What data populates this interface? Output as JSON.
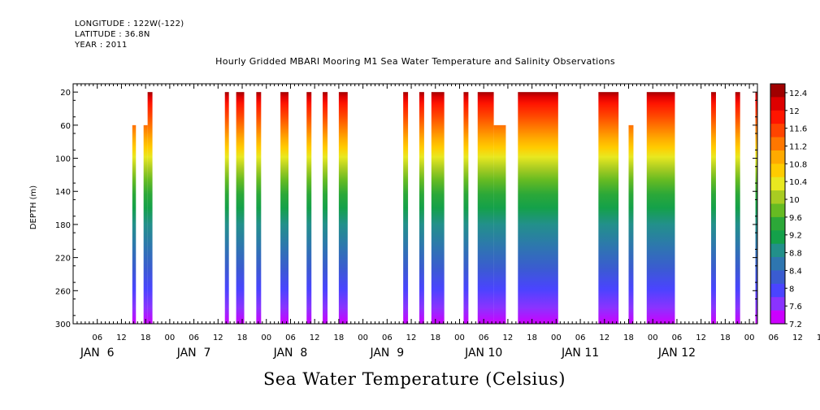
{
  "header": {
    "longitude": "LONGITUDE : 122W(-122)",
    "latitude": "LATITUDE : 36.8N",
    "year": "YEAR : 2011",
    "title": "Hourly Gridded MBARI Mooring M1 Sea Water Temperature and Salinity Observations"
  },
  "chart_data": {
    "type": "heatmap",
    "title": "Hourly Gridded MBARI Mooring M1 Sea Water Temperature and Salinity Observations",
    "units_label": "Sea Water Temperature (Celsius)",
    "ylabel": "DEPTH (m)",
    "ylim": [
      300,
      10
    ],
    "y_ticks": [
      20,
      60,
      100,
      140,
      180,
      220,
      260,
      300
    ],
    "x_range_hours": [
      0,
      170
    ],
    "x_hour_labels": [
      "06",
      "12",
      "18",
      "00",
      "06",
      "12",
      "18",
      "00",
      "06",
      "12",
      "18",
      "00",
      "06",
      "12",
      "18",
      "00",
      "06",
      "12",
      "18",
      "00",
      "06",
      "12",
      "18",
      "00",
      "06",
      "12",
      "18",
      "00",
      "06",
      "12",
      "18",
      "00"
    ],
    "x_day_labels": [
      "JAN  6",
      "JAN  7",
      "JAN  8",
      "JAN  9",
      "JAN 10",
      "JAN 11",
      "JAN 12"
    ],
    "colorbar_labels": [
      "12.4",
      "12",
      "11.6",
      "11.2",
      "10.8",
      "10.4",
      "10",
      "9.6",
      "9.2",
      "8.8",
      "8.4",
      "8",
      "7.6",
      "7.2"
    ],
    "colorbar_range": [
      7.2,
      12.6
    ],
    "colorbar_colors": [
      "#cc00ff",
      "#8a33ff",
      "#4a44ff",
      "#3a5cd0",
      "#2e76b0",
      "#22908a",
      "#14a14a",
      "#2ca838",
      "#66bb22",
      "#a8cc22",
      "#e8e820",
      "#ffcc00",
      "#ffaa00",
      "#ff7700",
      "#ff4400",
      "#ff1500",
      "#dd0000",
      "#a00000"
    ],
    "data_blocks": [
      {
        "x_start": 14.7,
        "x_end": 15.6,
        "top_depth": 60
      },
      {
        "x_start": 17.5,
        "x_end": 18.5,
        "top_depth": 60
      },
      {
        "x_start": 18.5,
        "x_end": 19.7,
        "top_depth": 20
      },
      {
        "x_start": 37.7,
        "x_end": 38.7,
        "top_depth": 20
      },
      {
        "x_start": 40.5,
        "x_end": 42.5,
        "top_depth": 20
      },
      {
        "x_start": 45.5,
        "x_end": 46.7,
        "top_depth": 20
      },
      {
        "x_start": 51.5,
        "x_end": 53.5,
        "top_depth": 20
      },
      {
        "x_start": 58.0,
        "x_end": 59.2,
        "top_depth": 20
      },
      {
        "x_start": 62.0,
        "x_end": 63.2,
        "top_depth": 20
      },
      {
        "x_start": 66.0,
        "x_end": 68.2,
        "top_depth": 20
      },
      {
        "x_start": 82.0,
        "x_end": 83.2,
        "top_depth": 20
      },
      {
        "x_start": 86.0,
        "x_end": 87.2,
        "top_depth": 20
      },
      {
        "x_start": 89.0,
        "x_end": 92.2,
        "top_depth": 20
      },
      {
        "x_start": 97.0,
        "x_end": 98.2,
        "top_depth": 20
      },
      {
        "x_start": 100.5,
        "x_end": 104.5,
        "top_depth": 20
      },
      {
        "x_start": 104.5,
        "x_end": 107.5,
        "top_depth": 60
      },
      {
        "x_start": 110.5,
        "x_end": 120.5,
        "top_depth": 20
      },
      {
        "x_start": 130.5,
        "x_end": 135.5,
        "top_depth": 20
      },
      {
        "x_start": 138.0,
        "x_end": 139.2,
        "top_depth": 60
      },
      {
        "x_start": 142.5,
        "x_end": 149.5,
        "top_depth": 20
      },
      {
        "x_start": 158.5,
        "x_end": 159.7,
        "top_depth": 20
      },
      {
        "x_start": 164.5,
        "x_end": 165.7,
        "top_depth": 20
      },
      {
        "x_start": 169.5,
        "x_end": 170.0,
        "top_depth": 20
      }
    ]
  }
}
